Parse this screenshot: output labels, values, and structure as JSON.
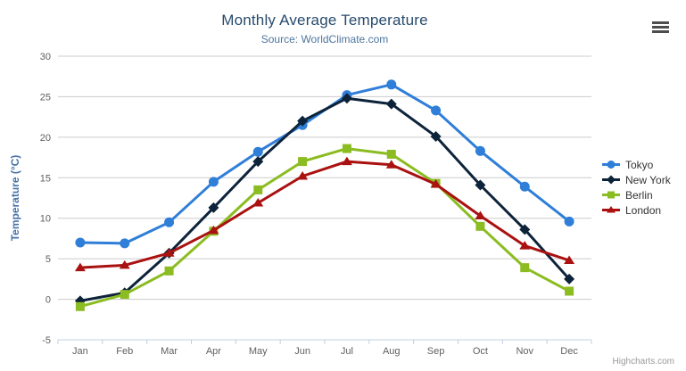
{
  "export_menu": {
    "icon": "hamburger-icon"
  },
  "credits": {
    "text": "Highcharts.com"
  },
  "colors": {
    "background": "#ffffff",
    "title": "#274b6d",
    "subtitle": "#4d759e",
    "axis_title": "#4572a7",
    "tick_label": "#606060",
    "gridline": "#cccccc",
    "axis_line": "#c0d0e0",
    "legend_text": "#333333",
    "credits": "#999999",
    "menu_icon": "#4d4d4d"
  },
  "chart_data": {
    "type": "line",
    "title": "Monthly Average Temperature",
    "subtitle": "Source: WorldClimate.com",
    "xlabel": "",
    "ylabel": "Temperature (°C)",
    "ylim": [
      -5,
      30
    ],
    "ytick_interval": 5,
    "grid": true,
    "legend_position": "right",
    "categories": [
      "Jan",
      "Feb",
      "Mar",
      "Apr",
      "May",
      "Jun",
      "Jul",
      "Aug",
      "Sep",
      "Oct",
      "Nov",
      "Dec"
    ],
    "series": [
      {
        "name": "Tokyo",
        "color": "#2f7ed8",
        "marker": "circle",
        "values": [
          7.0,
          6.9,
          9.5,
          14.5,
          18.2,
          21.5,
          25.2,
          26.5,
          23.3,
          18.3,
          13.9,
          9.6
        ]
      },
      {
        "name": "New York",
        "color": "#0d233a",
        "marker": "diamond",
        "values": [
          -0.2,
          0.8,
          5.7,
          11.3,
          17.0,
          22.0,
          24.8,
          24.1,
          20.1,
          14.1,
          8.6,
          2.5
        ]
      },
      {
        "name": "Berlin",
        "color": "#8bbc21",
        "marker": "square",
        "values": [
          -0.9,
          0.6,
          3.5,
          8.4,
          13.5,
          17.0,
          18.6,
          17.9,
          14.3,
          9.0,
          3.9,
          1.0
        ]
      },
      {
        "name": "London",
        "color": "#aa1111",
        "marker": "triangle",
        "values": [
          3.9,
          4.2,
          5.7,
          8.5,
          11.9,
          15.2,
          17.0,
          16.6,
          14.2,
          10.3,
          6.6,
          4.8
        ]
      }
    ]
  }
}
